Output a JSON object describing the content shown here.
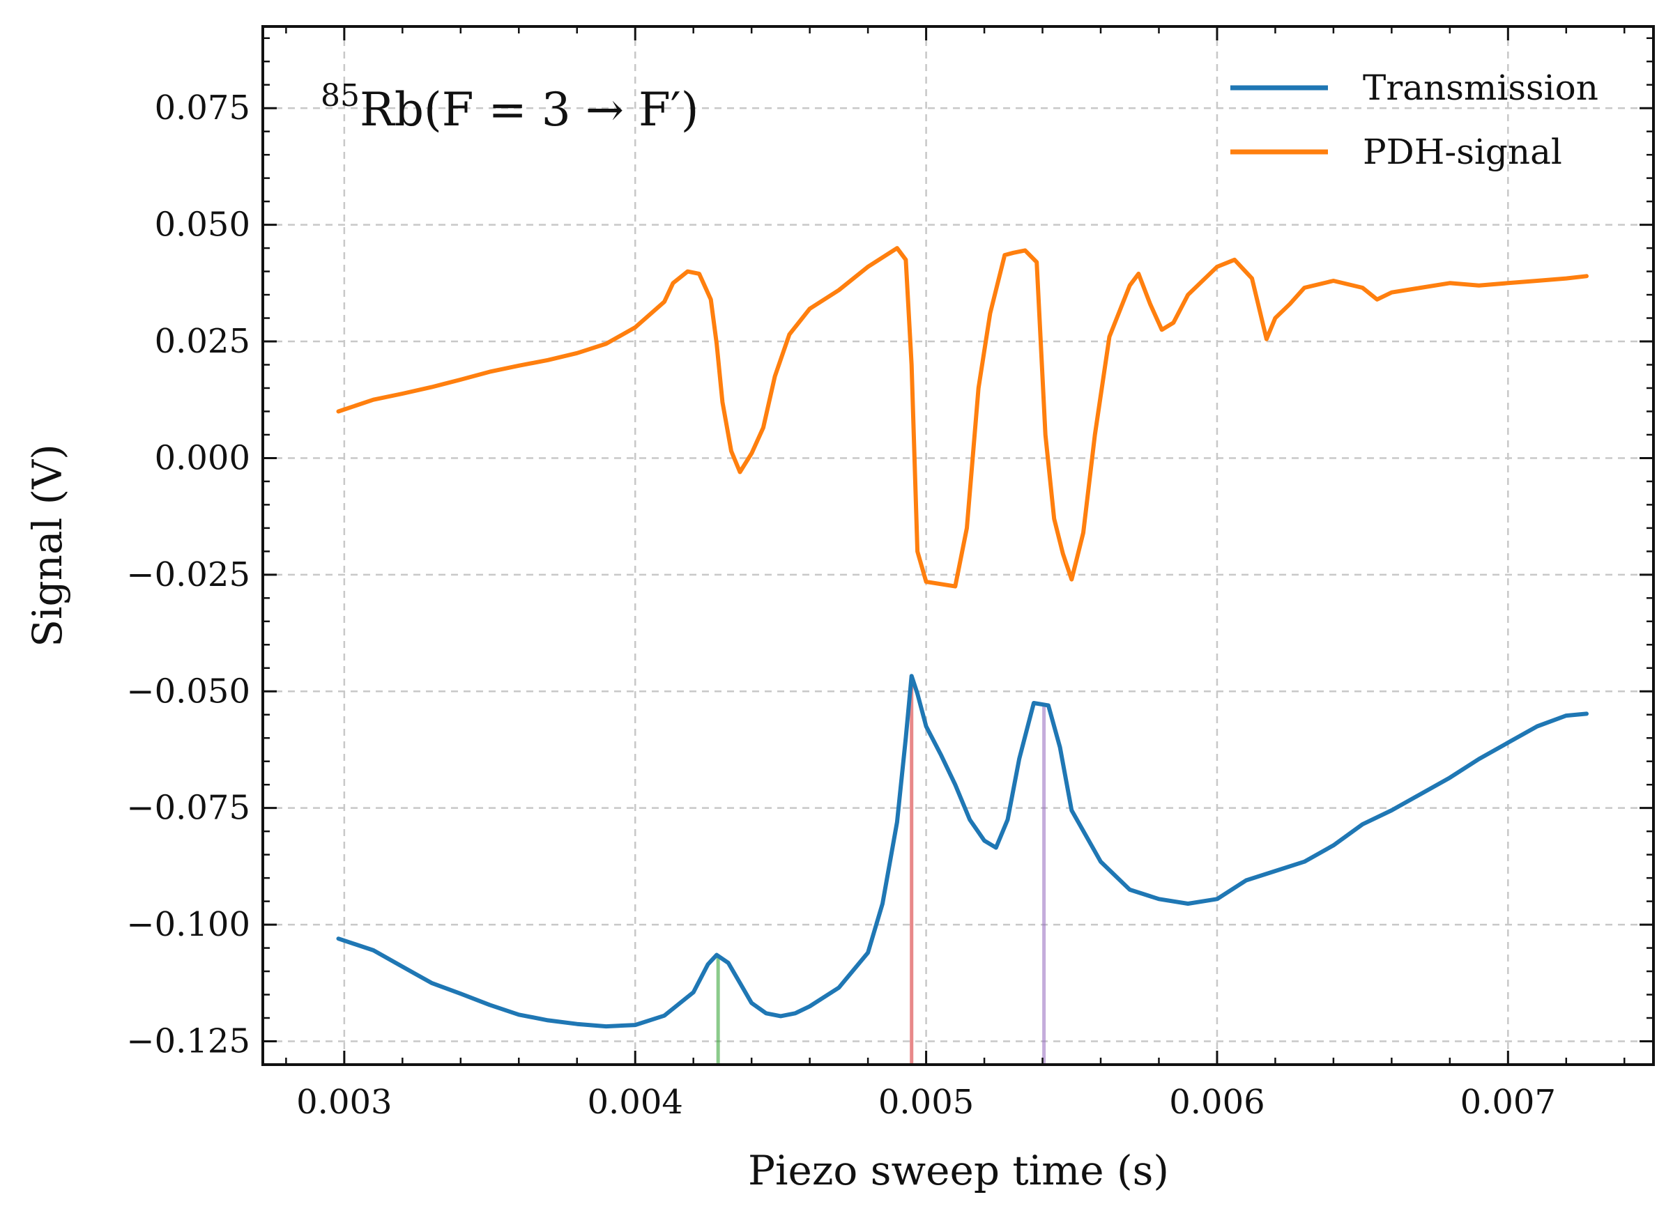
{
  "chart_data": {
    "type": "line",
    "title": "",
    "annotation": {
      "isotope": "85",
      "text": "Rb(F = 3 → F′)"
    },
    "xlabel": "Piezo sweep time (s)",
    "ylabel": "Signal (V)",
    "xlim": [
      0.00272,
      0.0075
    ],
    "ylim": [
      -0.13,
      0.0925
    ],
    "xticks": [
      0.003,
      0.004,
      0.005,
      0.006,
      0.007
    ],
    "xtick_labels": [
      "0.003",
      "0.004",
      "0.005",
      "0.006",
      "0.007"
    ],
    "yticks": [
      0.075,
      0.05,
      0.025,
      0.0,
      -0.025,
      -0.05,
      -0.075,
      -0.1,
      -0.125
    ],
    "ytick_labels": [
      "0.075",
      "0.050",
      "0.025",
      "0.000",
      "−0.025",
      "−0.050",
      "−0.075",
      "−0.100",
      "−0.125"
    ],
    "grid": true,
    "legend_position": "top-right",
    "series": [
      {
        "name": "Transmission",
        "color": "#1f77b4",
        "points": [
          [
            0.00298,
            -0.103
          ],
          [
            0.0031,
            -0.1055
          ],
          [
            0.0032,
            -0.109
          ],
          [
            0.0033,
            -0.1125
          ],
          [
            0.0034,
            -0.1148
          ],
          [
            0.0035,
            -0.1172
          ],
          [
            0.0036,
            -0.1193
          ],
          [
            0.0037,
            -0.1205
          ],
          [
            0.0038,
            -0.1213
          ],
          [
            0.0039,
            -0.1218
          ],
          [
            0.004,
            -0.1215
          ],
          [
            0.0041,
            -0.1195
          ],
          [
            0.0042,
            -0.1145
          ],
          [
            0.00425,
            -0.1085
          ],
          [
            0.00428,
            -0.1065
          ],
          [
            0.00432,
            -0.1082
          ],
          [
            0.00436,
            -0.1125
          ],
          [
            0.0044,
            -0.1168
          ],
          [
            0.00445,
            -0.119
          ],
          [
            0.0045,
            -0.1196
          ],
          [
            0.00455,
            -0.119
          ],
          [
            0.0046,
            -0.1175
          ],
          [
            0.0047,
            -0.1135
          ],
          [
            0.0048,
            -0.106
          ],
          [
            0.00485,
            -0.0955
          ],
          [
            0.0049,
            -0.078
          ],
          [
            0.00493,
            -0.06
          ],
          [
            0.00495,
            -0.0467
          ],
          [
            0.00497,
            -0.0505
          ],
          [
            0.005,
            -0.0575
          ],
          [
            0.00505,
            -0.0635
          ],
          [
            0.0051,
            -0.07
          ],
          [
            0.00515,
            -0.0775
          ],
          [
            0.0052,
            -0.082
          ],
          [
            0.00524,
            -0.0835
          ],
          [
            0.00528,
            -0.0775
          ],
          [
            0.00532,
            -0.0645
          ],
          [
            0.00537,
            -0.0525
          ],
          [
            0.00542,
            -0.053
          ],
          [
            0.00546,
            -0.062
          ],
          [
            0.0055,
            -0.0755
          ],
          [
            0.0056,
            -0.0865
          ],
          [
            0.0057,
            -0.0925
          ],
          [
            0.0058,
            -0.0945
          ],
          [
            0.0059,
            -0.0955
          ],
          [
            0.006,
            -0.0945
          ],
          [
            0.0061,
            -0.0905
          ],
          [
            0.0062,
            -0.0885
          ],
          [
            0.0063,
            -0.0865
          ],
          [
            0.0064,
            -0.083
          ],
          [
            0.0065,
            -0.0785
          ],
          [
            0.0066,
            -0.0755
          ],
          [
            0.0067,
            -0.072
          ],
          [
            0.0068,
            -0.0685
          ],
          [
            0.0069,
            -0.0645
          ],
          [
            0.007,
            -0.061
          ],
          [
            0.0071,
            -0.0575
          ],
          [
            0.0072,
            -0.0552
          ],
          [
            0.00727,
            -0.0548
          ]
        ]
      },
      {
        "name": "PDH-signal",
        "color": "#ff7f0e",
        "points": [
          [
            0.00298,
            0.01
          ],
          [
            0.0031,
            0.0125
          ],
          [
            0.0032,
            0.0138
          ],
          [
            0.0033,
            0.0152
          ],
          [
            0.0034,
            0.0168
          ],
          [
            0.0035,
            0.0185
          ],
          [
            0.0036,
            0.0198
          ],
          [
            0.0037,
            0.021
          ],
          [
            0.0038,
            0.0225
          ],
          [
            0.0039,
            0.0245
          ],
          [
            0.004,
            0.028
          ],
          [
            0.0041,
            0.0335
          ],
          [
            0.00413,
            0.0375
          ],
          [
            0.00418,
            0.04
          ],
          [
            0.00422,
            0.0395
          ],
          [
            0.00426,
            0.034
          ],
          [
            0.00428,
            0.0245
          ],
          [
            0.0043,
            0.012
          ],
          [
            0.00433,
            0.0015
          ],
          [
            0.00436,
            -0.003
          ],
          [
            0.0044,
            0.001
          ],
          [
            0.00444,
            0.0065
          ],
          [
            0.00448,
            0.0175
          ],
          [
            0.00453,
            0.0265
          ],
          [
            0.0046,
            0.032
          ],
          [
            0.0047,
            0.036
          ],
          [
            0.0048,
            0.041
          ],
          [
            0.0049,
            0.045
          ],
          [
            0.00493,
            0.0425
          ],
          [
            0.00495,
            0.02
          ],
          [
            0.00497,
            -0.02
          ],
          [
            0.005,
            -0.0265
          ],
          [
            0.0051,
            -0.0275
          ],
          [
            0.00514,
            -0.015
          ],
          [
            0.00518,
            0.015
          ],
          [
            0.00522,
            0.031
          ],
          [
            0.00527,
            0.0435
          ],
          [
            0.0053,
            0.044
          ],
          [
            0.00534,
            0.0445
          ],
          [
            0.00538,
            0.042
          ],
          [
            0.00541,
            0.005
          ],
          [
            0.00544,
            -0.013
          ],
          [
            0.00547,
            -0.0205
          ],
          [
            0.0055,
            -0.026
          ],
          [
            0.00554,
            -0.016
          ],
          [
            0.00558,
            0.005
          ],
          [
            0.00563,
            0.026
          ],
          [
            0.0057,
            0.037
          ],
          [
            0.00573,
            0.0395
          ],
          [
            0.00577,
            0.033
          ],
          [
            0.00581,
            0.0275
          ],
          [
            0.00585,
            0.029
          ],
          [
            0.0059,
            0.035
          ],
          [
            0.006,
            0.041
          ],
          [
            0.00606,
            0.0425
          ],
          [
            0.00612,
            0.0385
          ],
          [
            0.00617,
            0.0255
          ],
          [
            0.0062,
            0.03
          ],
          [
            0.00625,
            0.033
          ],
          [
            0.0063,
            0.0365
          ],
          [
            0.0064,
            0.038
          ],
          [
            0.0065,
            0.0365
          ],
          [
            0.00655,
            0.034
          ],
          [
            0.0066,
            0.0355
          ],
          [
            0.0067,
            0.0365
          ],
          [
            0.0068,
            0.0375
          ],
          [
            0.0069,
            0.037
          ],
          [
            0.007,
            0.0375
          ],
          [
            0.0071,
            0.038
          ],
          [
            0.0072,
            0.0385
          ],
          [
            0.00727,
            0.039
          ]
        ]
      }
    ],
    "vlines": [
      {
        "x": 0.004285,
        "y_top": -0.1065,
        "color": "#2ca02c"
      },
      {
        "x": 0.00495,
        "y_top": -0.0467,
        "color": "#d62728"
      },
      {
        "x": 0.005405,
        "y_top": -0.0525,
        "color": "#9467bd"
      }
    ]
  }
}
